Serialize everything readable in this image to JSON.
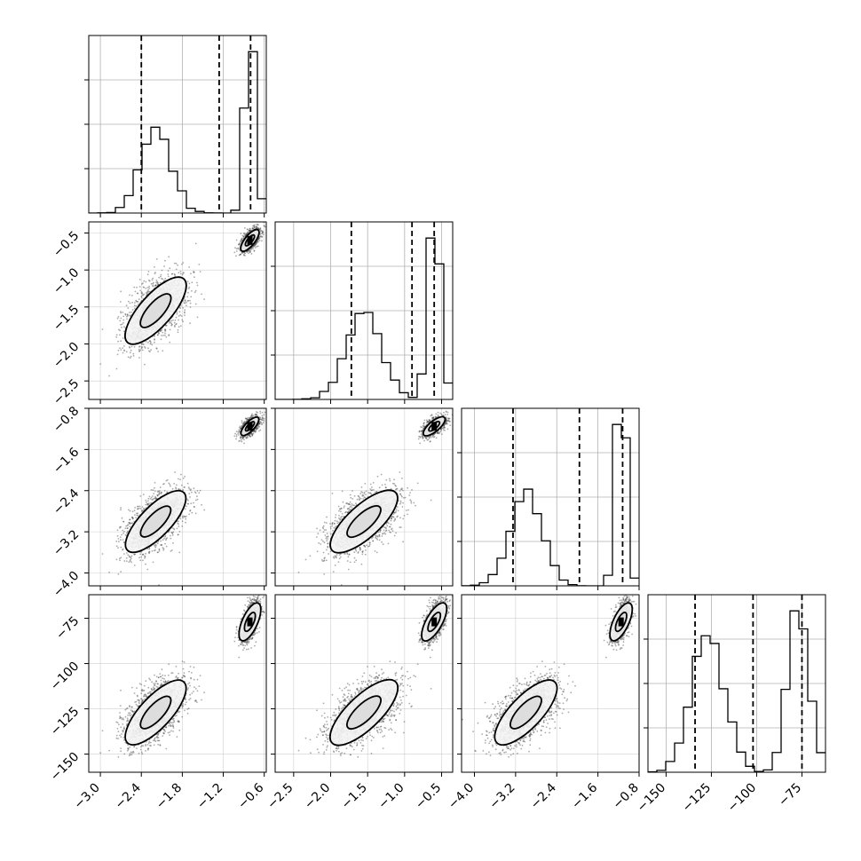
{
  "figure": {
    "type": "corner-plot",
    "background": "#ffffff",
    "line_color": "#000000",
    "grid_color": "#b0b0b0",
    "quantile_line_style": "dashed"
  },
  "chart_data": {
    "type": "corner",
    "params": [
      {
        "range": [
          -3.17,
          -0.57
        ],
        "ticks": [
          -3.0,
          -2.4,
          -1.8,
          -1.2,
          -0.6
        ],
        "tick_labels": [
          "−3.0",
          "−2.4",
          "−1.8",
          "−1.2",
          "−0.6"
        ],
        "modes": [
          {
            "mean": -2.19,
            "sd": 0.22,
            "w": 0.55
          },
          {
            "mean": -0.81,
            "sd": 0.065,
            "w": 0.45
          }
        ]
      },
      {
        "range": [
          -2.75,
          -0.35
        ],
        "ticks": [
          -2.5,
          -2.0,
          -1.5,
          -1.0,
          -0.5
        ],
        "tick_labels": [
          "−2.5",
          "−2.0",
          "−1.5",
          "−1.0",
          "−0.5"
        ],
        "modes": [
          {
            "mean": -1.55,
            "sd": 0.23,
            "w": 0.55
          },
          {
            "mean": -0.6,
            "sd": 0.075,
            "w": 0.45
          }
        ]
      },
      {
        "range": [
          -4.25,
          -0.8
        ],
        "ticks": [
          -4.0,
          -3.2,
          -2.4,
          -1.6,
          -0.8
        ],
        "tick_labels": [
          "−4.0",
          "−3.2",
          "−2.4",
          "−1.6",
          "−0.8"
        ],
        "modes": [
          {
            "mean": -3.0,
            "sd": 0.3,
            "w": 0.55
          },
          {
            "mean": -1.15,
            "sd": 0.09,
            "w": 0.45
          }
        ]
      },
      {
        "range": [
          -160,
          -62
        ],
        "ticks": [
          -150,
          -125,
          -100,
          -75
        ],
        "tick_labels": [
          "−150",
          "−125",
          "−100",
          "−75"
        ],
        "modes": [
          {
            "mean": -127,
            "sd": 9,
            "w": 0.55
          },
          {
            "mean": -77,
            "sd": 5.5,
            "w": 0.45
          }
        ]
      }
    ],
    "quantiles": [
      [
        -2.4,
        -1.26,
        -0.8
      ],
      [
        -1.72,
        -0.9,
        -0.6
      ],
      [
        -3.25,
        -1.96,
        -1.12
      ],
      [
        -134,
        -102,
        -75
      ]
    ],
    "histograms": [
      {
        "bins": 20,
        "y_ticks_present": true
      },
      {
        "bins": 20,
        "y_ticks_present": true
      },
      {
        "bins": 20,
        "y_ticks_present": true
      },
      {
        "bins": 20,
        "y_ticks_present": true
      }
    ],
    "clusters": [
      {
        "name": "",
        "weight": 0.55
      },
      {
        "name": "",
        "weight": 0.45
      }
    ],
    "grid": true,
    "contour_levels": 2
  }
}
